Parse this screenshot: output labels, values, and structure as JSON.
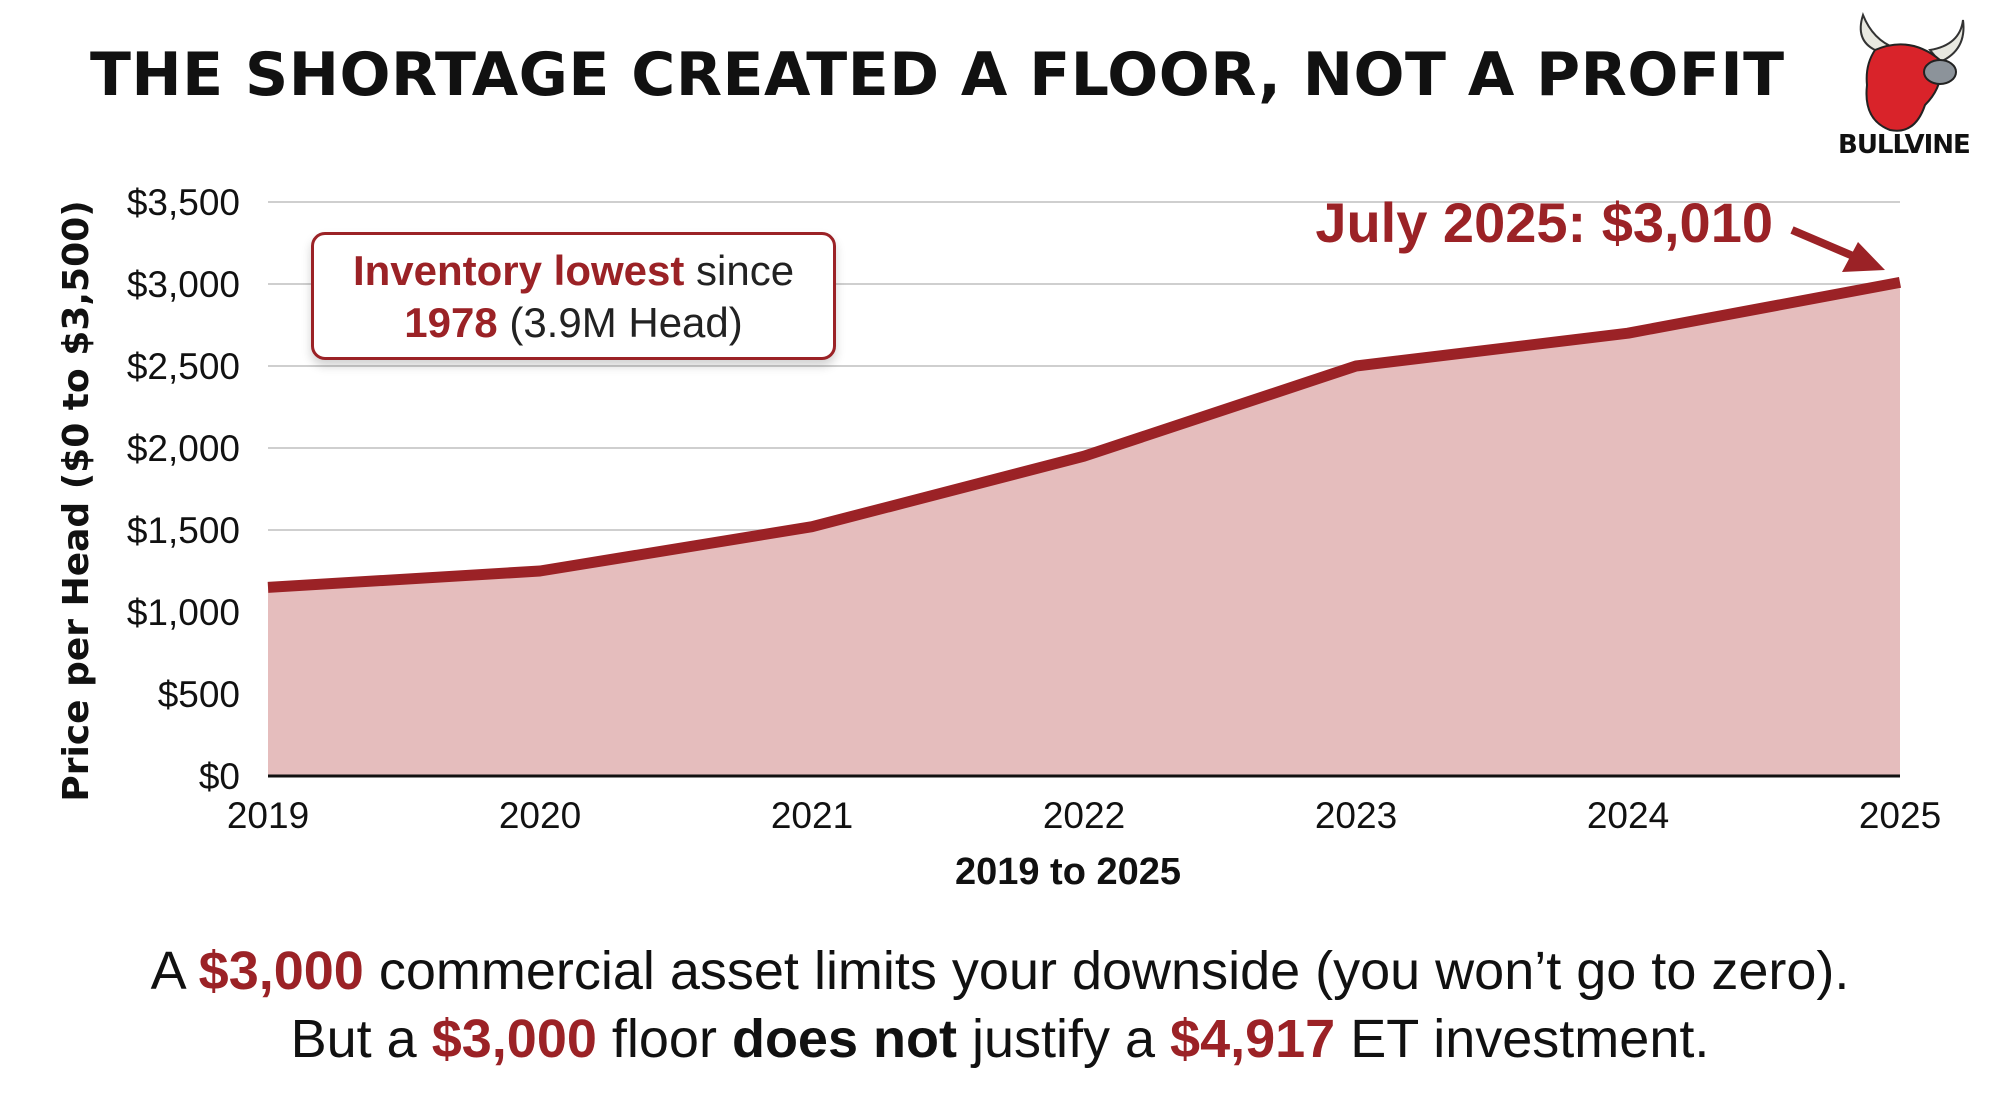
{
  "title": "THE SHORTAGE CREATED A FLOOR, NOT A PROFIT",
  "logo": {
    "text": "BULLVINE"
  },
  "annotation": {
    "highlight": "Inventory lowest",
    "text1": " since",
    "year": "1978",
    "text2": " (3.9M Head)"
  },
  "callout": "July 2025: $3,010",
  "footer": {
    "line1": {
      "a": "A ",
      "b": "$3,000",
      "c": " commercial asset limits your downside (you won’t go to zero)."
    },
    "line2": {
      "a": "But a ",
      "b": "$3,000",
      "c": " floor ",
      "d": "does not",
      "e": " justify a ",
      "f": "$4,917",
      "g": " ET investment."
    }
  },
  "colors": {
    "accent": "#9b2226",
    "fill": "#e5bdbd"
  },
  "chart_data": {
    "type": "area",
    "x": [
      "2019",
      "2020",
      "2021",
      "2022",
      "2023",
      "2024",
      "2025"
    ],
    "values": [
      1150,
      1250,
      1520,
      1950,
      2500,
      2700,
      3010
    ],
    "xlabel": "2019 to 2025",
    "ylabel": "Price per Head ($0 to $3,500)",
    "ylim": [
      0,
      3500
    ],
    "yticks": [
      0,
      500,
      1000,
      1500,
      2000,
      2500,
      3000,
      3500
    ],
    "ytick_labels": [
      "$0",
      "$500",
      "$1,000",
      "$1,500",
      "$2,000",
      "$2,500",
      "$3,000",
      "$3,500"
    ],
    "grid": true
  }
}
